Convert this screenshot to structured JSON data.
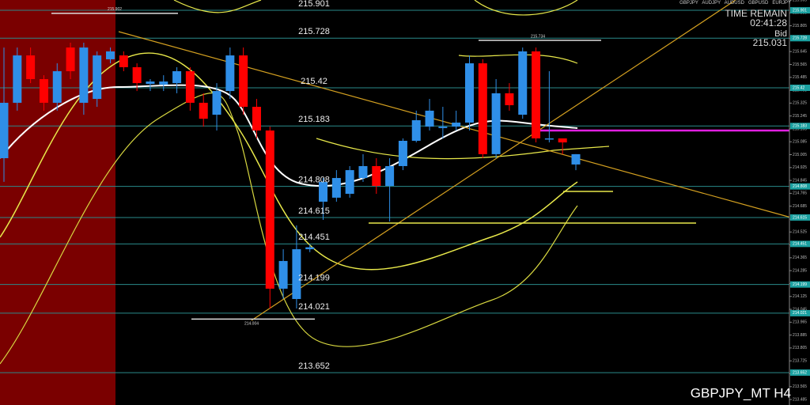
{
  "chart_data": {
    "type": "candlestick",
    "title": "GBPJPY_MT H4",
    "symbols": [
      "GBPJPY",
      "AUDJPY",
      "AUDUSD",
      "GBPUSD",
      "EURJPY"
    ],
    "info": {
      "time_label": "TIME REMAIN",
      "time": "02:41:28",
      "bid_label": "Bid",
      "bid": 215.031
    },
    "ylim": [
      213.451,
      215.965
    ],
    "yticks": [
      213.485,
      213.565,
      213.645,
      213.725,
      213.805,
      213.885,
      213.965,
      214.045,
      214.125,
      214.205,
      214.285,
      214.365,
      214.445,
      214.525,
      214.605,
      214.685,
      214.765,
      214.845,
      214.925,
      215.005,
      215.085,
      215.165,
      215.245,
      215.325,
      215.405,
      215.485,
      215.565,
      215.645,
      215.725,
      215.805,
      215.885,
      215.965
    ],
    "levels": [
      215.901,
      215.728,
      215.42,
      215.183,
      214.808,
      214.615,
      214.451,
      214.199,
      214.021,
      213.652
    ],
    "markers": [
      215.902,
      215.734,
      214.004
    ],
    "up_color": "#2f8fe8",
    "down_color": "#ff0000",
    "open": [
      214.983,
      215.327,
      215.621,
      215.474,
      215.327,
      215.67,
      215.327,
      215.351,
      215.597,
      215.621,
      215.548,
      215.444,
      215.44,
      215.449,
      215.523,
      215.327,
      215.253,
      215.4,
      215.621,
      215.302,
      215.155,
      214.173,
      214.109,
      214.418,
      214.713,
      214.738,
      214.762,
      214.86,
      214.934,
      214.811,
      214.934,
      215.091,
      215.179,
      215.17,
      215.179,
      215.204,
      215.572,
      215.008,
      215.386,
      215.253,
      215.646,
      215.101,
      215.106,
      214.944
    ],
    "high": [
      215.67,
      215.67,
      215.67,
      215.498,
      215.572,
      215.7,
      215.7,
      215.646,
      215.67,
      215.646,
      215.572,
      215.474,
      215.498,
      215.548,
      215.548,
      215.386,
      215.449,
      215.67,
      215.67,
      215.351,
      215.179,
      214.418,
      214.566,
      214.45,
      214.86,
      214.909,
      214.934,
      215.008,
      214.983,
      214.983,
      215.106,
      215.278,
      215.351,
      215.302,
      215.278,
      215.621,
      215.597,
      215.474,
      215.449,
      215.67,
      215.67,
      215.523,
      215.106,
      215.008
    ],
    "low": [
      214.836,
      215.278,
      215.449,
      215.278,
      215.278,
      215.474,
      215.253,
      215.302,
      215.572,
      215.523,
      215.4,
      215.4,
      215.4,
      215.386,
      215.278,
      215.179,
      215.155,
      215.351,
      215.253,
      215.106,
      214.05,
      214.109,
      214.05,
      214.4,
      214.6,
      214.713,
      214.738,
      214.836,
      214.762,
      214.59,
      214.909,
      215.081,
      215.155,
      215.106,
      215.155,
      215.155,
      214.983,
      214.983,
      215.278,
      215.228,
      215.081,
      215.081,
      215.008,
      214.909
    ],
    "close": [
      215.327,
      215.621,
      215.474,
      215.327,
      215.523,
      215.523,
      215.67,
      215.621,
      215.646,
      215.548,
      215.449,
      215.459,
      215.459,
      215.523,
      215.327,
      215.228,
      215.4,
      215.621,
      215.302,
      215.155,
      214.173,
      214.345,
      214.418,
      214.43,
      214.836,
      214.86,
      214.909,
      214.934,
      214.811,
      214.934,
      215.091,
      215.219,
      215.278,
      215.179,
      215.204,
      215.572,
      215.008,
      215.386,
      215.312,
      215.646,
      215.106,
      215.106,
      215.081,
      215.008
    ]
  }
}
